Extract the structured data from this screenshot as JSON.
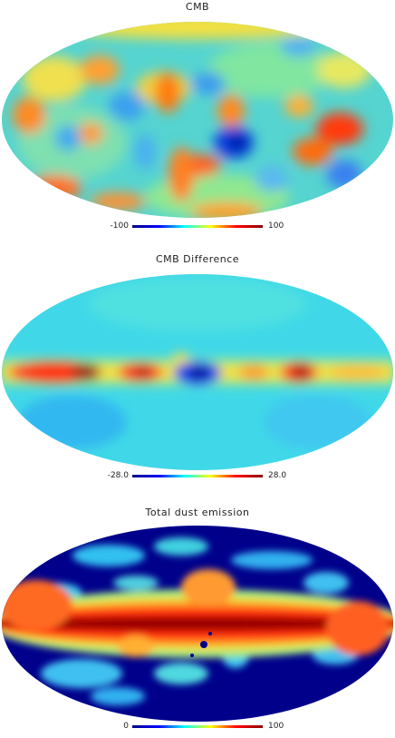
{
  "maps": [
    {
      "title": "CMB",
      "colorbar_min": "-100",
      "colorbar_max": "100",
      "colormap": [
        "#00008b",
        "#0000ff",
        "#00ffff",
        "#ffff00",
        "#ff0000",
        "#8b0000"
      ]
    },
    {
      "title": "CMB Difference",
      "colorbar_min": "-28.0",
      "colorbar_max": "28.0",
      "colormap": [
        "#00008b",
        "#0000ff",
        "#00ffff",
        "#ffff00",
        "#ff0000",
        "#8b0000"
      ]
    },
    {
      "title": "Total dust emission",
      "colorbar_min": "0",
      "colorbar_max": "100",
      "colormap": [
        "#00008b",
        "#0000ff",
        "#00ffff",
        "#ffff00",
        "#ff0000",
        "#8b0000"
      ]
    }
  ]
}
